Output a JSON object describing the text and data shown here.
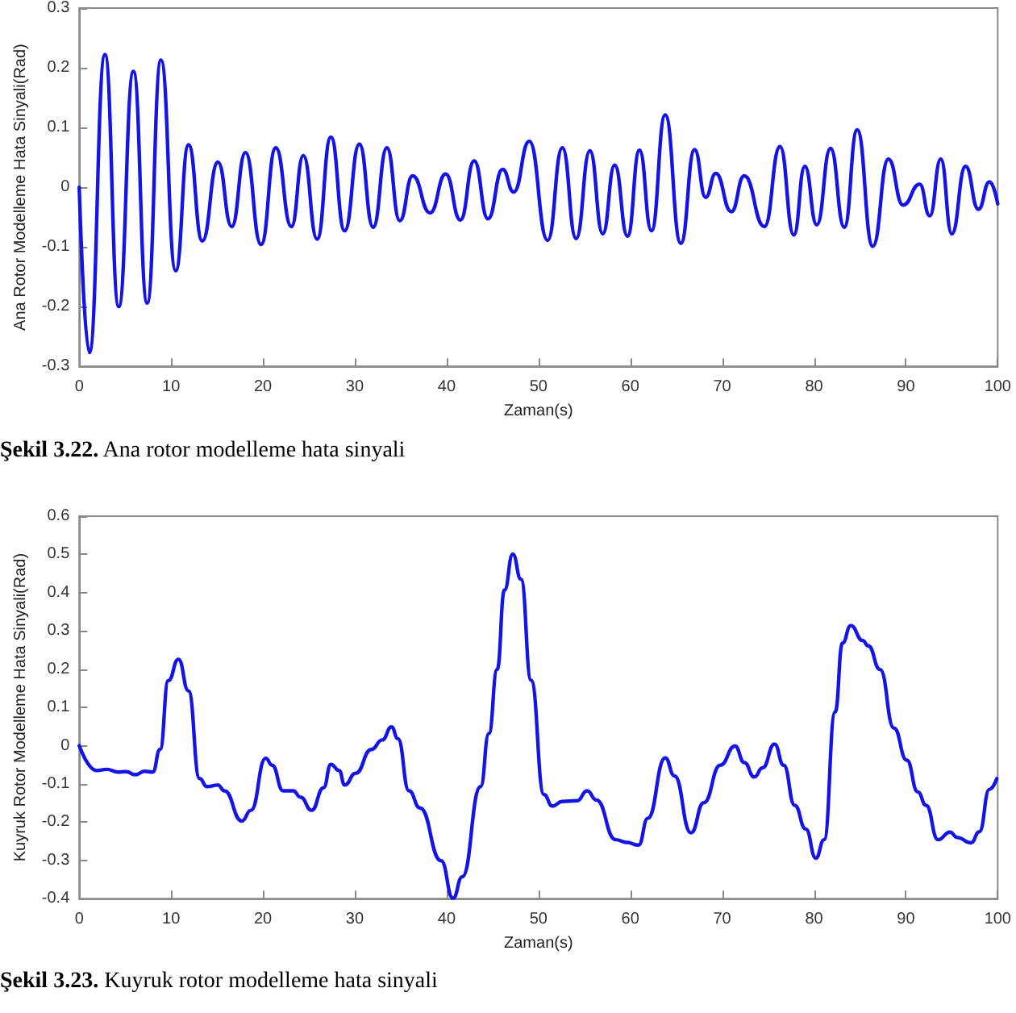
{
  "chart_data": [
    {
      "type": "line",
      "xlabel": "Zaman(s)",
      "ylabel": "Ana Rotor Modelleme Hata Sinyali(Rad)",
      "annotations": [
        "Şekil 3.22. Ana rotor modelleme hata sinyali"
      ],
      "xlim": [
        0,
        100
      ],
      "xticks": [
        0,
        10,
        20,
        30,
        40,
        50,
        60,
        70,
        80,
        90,
        100
      ],
      "ylim": [
        -0.3,
        0.3
      ],
      "yticks": [
        -0.3,
        -0.2,
        -0.1,
        0,
        0.1,
        0.2,
        0.3
      ],
      "grid": false,
      "marker": "none",
      "line_style": "solid",
      "series": [
        {
          "color": "#1414e6",
          "x": [
            0,
            1.1,
            2.8,
            4.3,
            5.9,
            7.4,
            8.9,
            10.5,
            11.9,
            13.4,
            15.1,
            16.6,
            18.1,
            19.8,
            21.4,
            23.1,
            24.4,
            25.9,
            27.4,
            28.9,
            30.5,
            32,
            33.5,
            34.9,
            36.3,
            38.2,
            39.9,
            41.5,
            43,
            44.5,
            46.1,
            47.3,
            49,
            51,
            52.6,
            54.1,
            55.6,
            57,
            58.3,
            59.7,
            61,
            62.3,
            63.8,
            65.5,
            67,
            68.2,
            69.3,
            71,
            72.4,
            74.6,
            76.3,
            77.8,
            79,
            80.3,
            81.8,
            83.3,
            84.7,
            86.4,
            88.1,
            89.7,
            91.5,
            92.6,
            93.8,
            95,
            96.5,
            97.9,
            99.1,
            100
          ],
          "values": [
            0,
            -0.277,
            0.222,
            -0.2,
            0.194,
            -0.194,
            0.213,
            -0.14,
            0.071,
            -0.09,
            0.042,
            -0.066,
            0.058,
            -0.096,
            0.066,
            -0.066,
            0.053,
            -0.087,
            0.084,
            -0.073,
            0.072,
            -0.067,
            0.066,
            -0.056,
            0.019,
            -0.043,
            0.022,
            -0.055,
            0.044,
            -0.053,
            0.03,
            -0.008,
            0.077,
            -0.089,
            0.066,
            -0.086,
            0.061,
            -0.078,
            0.037,
            -0.082,
            0.062,
            -0.073,
            0.121,
            -0.094,
            0.063,
            -0.017,
            0.023,
            -0.041,
            0.019,
            -0.066,
            0.068,
            -0.08,
            0.035,
            -0.063,
            0.065,
            -0.067,
            0.096,
            -0.099,
            0.047,
            -0.03,
            0.005,
            -0.048,
            0.047,
            -0.078,
            0.035,
            -0.037,
            0.009,
            -0.028
          ]
        }
      ]
    },
    {
      "type": "line",
      "xlabel": "Zaman(s)",
      "ylabel": "Kuyruk Rotor Modelleme Hata Sinyali(Rad)",
      "annotations": [
        "Şekil 3.23. Kuyruk rotor modelleme hata sinyali"
      ],
      "xlim": [
        0,
        100
      ],
      "xticks": [
        0,
        10,
        20,
        30,
        40,
        50,
        60,
        70,
        80,
        90,
        100
      ],
      "ylim": [
        -0.4,
        0.6
      ],
      "yticks": [
        -0.4,
        -0.3,
        -0.2,
        -0.1,
        0,
        0.1,
        0.2,
        0.3,
        0.4,
        0.5,
        0.6
      ],
      "grid": false,
      "marker": "none",
      "line_style": "solid",
      "series": [
        {
          "color": "#1414e6",
          "x": [
            0,
            1.9,
            3,
            4.2,
            5.1,
            6.1,
            7.1,
            8,
            8.8,
            9.7,
            10.8,
            11.9,
            13.1,
            13.9,
            15.1,
            15.8,
            17.7,
            18.7,
            20.3,
            21,
            22.2,
            23.3,
            24.1,
            25.3,
            26.6,
            27.4,
            28.3,
            28.9,
            30.1,
            31.8,
            33,
            34,
            34.7,
            35.9,
            37.1,
            39.4,
            40.7,
            41.7,
            43.7,
            44.6,
            45.5,
            46.3,
            47.2,
            48.1,
            49.2,
            50.6,
            51.5,
            52.6,
            54.2,
            55.3,
            56.3,
            58.4,
            59.6,
            60.9,
            61.9,
            63.8,
            64.8,
            66.6,
            68,
            69.8,
            71.4,
            72.4,
            73.5,
            74.4,
            75.7,
            76.7,
            77.9,
            79.1,
            80.2,
            81.1,
            82.3,
            83.1,
            84,
            85.3,
            85.9,
            87.2,
            88.7,
            90.1,
            91.3,
            92.2,
            93.5,
            94.8,
            95.6,
            97.1,
            98,
            99.1,
            99.9
          ],
          "values": [
            0,
            -0.065,
            -0.062,
            -0.069,
            -0.068,
            -0.076,
            -0.067,
            -0.069,
            -0.01,
            0.17,
            0.226,
            0.143,
            -0.086,
            -0.107,
            -0.103,
            -0.118,
            -0.197,
            -0.169,
            -0.033,
            -0.051,
            -0.118,
            -0.118,
            -0.135,
            -0.169,
            -0.11,
            -0.049,
            -0.065,
            -0.103,
            -0.072,
            -0.01,
            0.015,
            0.049,
            0.018,
            -0.118,
            -0.163,
            -0.301,
            -0.399,
            -0.343,
            -0.107,
            0.032,
            0.199,
            0.407,
            0.501,
            0.435,
            0.171,
            -0.128,
            -0.158,
            -0.146,
            -0.144,
            -0.118,
            -0.142,
            -0.246,
            -0.253,
            -0.26,
            -0.19,
            -0.032,
            -0.079,
            -0.228,
            -0.149,
            -0.051,
            -0.001,
            -0.044,
            -0.082,
            -0.058,
            0.004,
            -0.051,
            -0.156,
            -0.218,
            -0.294,
            -0.246,
            0.088,
            0.268,
            0.314,
            0.275,
            0.261,
            0.199,
            0.046,
            -0.038,
            -0.121,
            -0.156,
            -0.246,
            -0.226,
            -0.24,
            -0.254,
            -0.225,
            -0.114,
            -0.086
          ]
        }
      ]
    }
  ]
}
